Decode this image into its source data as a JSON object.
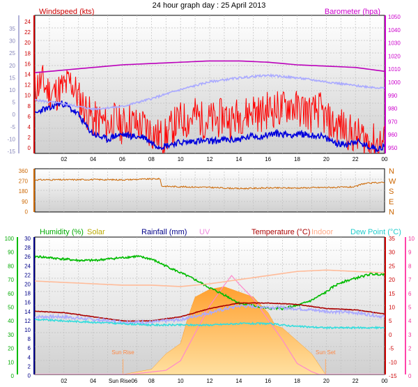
{
  "chart_data": [
    {
      "type": "line",
      "panel": "wind-barometer",
      "title": "24 hour graph day : 25 April 2013",
      "left_axis_title": "Windspeed (kts)",
      "right_axis_title": "Barometer (hpa)",
      "outer_left_ticks": [
        "35",
        "30",
        "25",
        "20",
        "15",
        "10",
        "5",
        "0",
        "-5",
        "-10",
        "-15"
      ],
      "left_ticks": [
        "24",
        "22",
        "20",
        "18",
        "16",
        "14",
        "12",
        "10",
        "8",
        "6",
        "4",
        "2",
        "0"
      ],
      "right_ticks": [
        "1050",
        "1040",
        "1030",
        "1020",
        "1010",
        "1000",
        "990",
        "980",
        "970",
        "960",
        "950"
      ],
      "x_ticks": [
        "02",
        "04",
        "06",
        "08",
        "10",
        "12",
        "14",
        "16",
        "18",
        "20",
        "22",
        "00"
      ],
      "ylim_left": [
        0,
        25
      ],
      "ylim_right": [
        947,
        1053
      ],
      "xlim": [
        0,
        24
      ],
      "series": [
        {
          "name": "Windspeed (kts)",
          "axis": "left",
          "color": "#ff0000",
          "noise": 3.5,
          "seed": 11,
          "x": [
            0,
            0.5,
            1,
            1.5,
            2,
            2.5,
            3,
            3.5,
            4,
            4.5,
            5,
            5.5,
            6,
            6.5,
            7,
            7.5,
            8,
            8.5,
            9,
            9.5,
            10,
            10.5,
            11,
            11.5,
            12,
            12.5,
            13,
            13.5,
            14,
            14.5,
            15,
            15.5,
            16,
            16.5,
            17,
            17.5,
            18,
            18.5,
            19,
            19.5,
            20,
            20.5,
            21,
            21.5,
            22,
            22.5,
            23,
            23.5,
            24
          ],
          "y": [
            12,
            13,
            11,
            11,
            12,
            13,
            10,
            8,
            6,
            6,
            5,
            6,
            5,
            6,
            5,
            5,
            4,
            3,
            3,
            5,
            6,
            6,
            7,
            6,
            6,
            6,
            7,
            6,
            7,
            7,
            8,
            7,
            8,
            8,
            8,
            9,
            8,
            8,
            7,
            8,
            6,
            5,
            5,
            4,
            3,
            3,
            2,
            2,
            2
          ]
        },
        {
          "x": [
            0,
            0.5,
            1,
            1.5,
            2,
            2.5,
            3,
            3.5,
            4,
            4.5,
            5,
            5.5,
            6,
            6.5,
            7,
            7.5,
            8,
            8.5,
            9,
            9.5,
            10,
            10.5,
            11,
            11.5,
            12,
            12.5,
            13,
            13.5,
            14,
            14.5,
            15,
            15.5,
            16,
            16.5,
            17,
            17.5,
            18,
            18.5,
            19,
            19.5,
            20,
            20.5,
            21,
            21.5,
            22,
            22.5,
            23,
            23.5,
            24
          ],
          "axis": "left",
          "color": "#0000dd",
          "noise": 0.6,
          "seed": 23,
          "y": [
            7,
            8,
            8,
            9,
            9,
            8,
            7,
            5,
            3.5,
            3,
            2.5,
            3.2,
            3.4,
            3.2,
            3,
            3,
            2,
            1.3,
            1.4,
            1.8,
            2,
            2,
            2.3,
            2.2,
            2.2,
            2.3,
            2.5,
            2.4,
            2.6,
            2.8,
            3.2,
            3,
            3.4,
            3.6,
            3.5,
            3.4,
            3.4,
            3.5,
            3.2,
            3.3,
            2.6,
            2.1,
            1.6,
            1.8,
            2.3,
            1.6,
            1.2,
            0.9,
            1.2
          ]
        },
        {
          "axis": "right",
          "color": "#bb00bb",
          "noise": 0,
          "seed": 1,
          "x": [
            0,
            2,
            4,
            6,
            8,
            10,
            12,
            14,
            16,
            18,
            20,
            22,
            24
          ],
          "y": [
            1009,
            1011,
            1013,
            1015,
            1016,
            1017,
            1018,
            1018,
            1017,
            1015,
            1014,
            1013,
            1010
          ]
        },
        {
          "axis": "right",
          "color": "#aaaaff",
          "noise": 0.8,
          "seed": 5,
          "x": [
            0,
            2,
            4,
            6,
            8,
            10,
            12,
            14,
            16,
            18,
            20,
            22,
            24
          ],
          "y": [
            988,
            985,
            981,
            983,
            989,
            996,
            1002,
            1005,
            1007,
            1005,
            1002,
            999,
            997
          ]
        }
      ]
    },
    {
      "type": "scatter",
      "panel": "wind-direction",
      "left_ticks": [
        "360",
        "270",
        "180",
        "90",
        "0"
      ],
      "right_ticks": [
        "N",
        "W",
        "S",
        "E",
        "N"
      ],
      "ylim": [
        0,
        360
      ],
      "xlim": [
        0,
        24
      ],
      "series": [
        {
          "axis": "left",
          "color": "#cc6600",
          "noise": 6,
          "seed": 31,
          "x": [
            0,
            2,
            4,
            6,
            8,
            8.6,
            8.7,
            10,
            12,
            14,
            16,
            18,
            20,
            21,
            22,
            22.5,
            23.5,
            24
          ],
          "y": [
            268,
            268,
            270,
            268,
            275,
            276,
            215,
            210,
            205,
            195,
            200,
            200,
            205,
            205,
            210,
            235,
            245,
            245
          ]
        }
      ]
    },
    {
      "type": "area",
      "panel": "humidity-temperature",
      "axis_titles": {
        "humidity": "Humidity (%)",
        "solar": "Solar",
        "rainfall": "Rainfall (mm)",
        "uv": "UV",
        "temperature": "Temperature (°C)",
        "indoor": "Indoor",
        "dew_point": "Dew Point (°C)"
      },
      "humidity_ticks": [
        "100",
        "90",
        "80",
        "70",
        "60",
        "50",
        "40",
        "30",
        "20",
        "10",
        "0"
      ],
      "rain_ticks": [
        "30",
        "28",
        "26",
        "24",
        "22",
        "20",
        "18",
        "16",
        "14",
        "12",
        "10",
        "8",
        "6",
        "4",
        "2",
        "0"
      ],
      "temperature_ticks": [
        "35",
        "30",
        "25",
        "20",
        "15",
        "10",
        "5",
        "0",
        "-5",
        "-10",
        "-15"
      ],
      "uv_ticks": [
        "10",
        "9",
        "8",
        "7",
        "6",
        "5",
        "4",
        "3",
        "2",
        "1",
        "0"
      ],
      "x_ticks": [
        "02",
        "04",
        "06",
        "08",
        "10",
        "12",
        "14",
        "16",
        "18",
        "20",
        "22",
        "00"
      ],
      "sunrise_label": "Sun Rise",
      "sunset_label": "Sun Set",
      "sunrise_axis_label": "Sun Rise06",
      "sunrise_hour": 6.05,
      "sunset_hour": 19.95,
      "ylim_humidity": [
        0,
        100
      ],
      "ylim_temperature": [
        -15,
        35
      ],
      "xlim": [
        0,
        24
      ],
      "solar_area": {
        "color": "#ffb347",
        "x": [
          0,
          6.05,
          8,
          9,
          10,
          10.5,
          11,
          12,
          13,
          14,
          15,
          16,
          16.5,
          17,
          18,
          19,
          19.95,
          24
        ],
        "y": [
          0,
          0,
          2,
          8,
          12,
          22,
          30,
          33,
          34,
          32,
          30,
          24,
          19,
          18,
          13,
          8,
          0,
          0
        ]
      },
      "uv_curve": {
        "color": "#ff88cc",
        "x": [
          0,
          6.5,
          9,
          10,
          11,
          12,
          13,
          13.5,
          14,
          15,
          16,
          17,
          18,
          19,
          19.5,
          24
        ],
        "y": [
          0,
          0,
          0.3,
          1,
          3,
          5,
          6.5,
          7.2,
          6.6,
          5.5,
          4,
          2.5,
          0.8,
          0.2,
          0,
          0
        ]
      },
      "series": [
        {
          "name": "Humidity (%)",
          "axis": "humidity",
          "color": "#00bb00",
          "noise": 0.8,
          "seed": 41,
          "x": [
            0,
            1,
            2,
            3,
            4,
            5,
            6,
            7,
            8,
            9,
            10,
            11,
            12,
            13,
            14,
            15,
            16,
            17,
            18,
            19,
            20,
            20.5,
            21,
            22,
            23,
            24
          ],
          "y": [
            86,
            85,
            84,
            83,
            83,
            84,
            85,
            86,
            84,
            79,
            74,
            69,
            63,
            58,
            52,
            50,
            48,
            48,
            50,
            54,
            60,
            64,
            67,
            70,
            73,
            73
          ]
        },
        {
          "axis": "temperature",
          "color": "#ffbb99",
          "noise": 0,
          "seed": 2,
          "x": [
            0,
            2,
            4,
            6,
            8,
            10,
            12,
            14,
            16,
            18,
            20,
            22,
            24
          ],
          "y": [
            19,
            18.5,
            18,
            17.5,
            17.5,
            17,
            18,
            19.5,
            21,
            22.5,
            23,
            22.5,
            22
          ]
        },
        {
          "name": "Temperature (°C)",
          "axis": "temperature",
          "color": "#aa0000",
          "noise": 0.1,
          "seed": 3,
          "x": [
            0,
            2,
            4,
            6,
            8,
            10,
            12,
            14,
            16,
            18,
            20,
            22,
            24
          ],
          "y": [
            8,
            7.5,
            6,
            4.5,
            4.5,
            6,
            9,
            11,
            11,
            10.5,
            9,
            8.5,
            7
          ]
        },
        {
          "axis": "temperature",
          "color": "#aaaaff",
          "noise": 0.6,
          "seed": 7,
          "x": [
            0,
            2,
            4,
            6,
            8,
            10,
            12,
            14,
            16,
            18,
            20,
            22,
            24
          ],
          "y": [
            6,
            6,
            5,
            4,
            4,
            5,
            7.5,
            10,
            9.5,
            9,
            8,
            7.5,
            6
          ]
        },
        {
          "name": "Dew Point (°C)",
          "axis": "temperature",
          "color": "#33dddd",
          "noise": 0.3,
          "seed": 9,
          "x": [
            0,
            2,
            4,
            6,
            8,
            10,
            12,
            14,
            16,
            18,
            20,
            22,
            24
          ],
          "y": [
            5,
            4.5,
            4,
            3.5,
            3,
            3,
            3,
            3.5,
            3.5,
            2.5,
            2,
            2,
            2
          ]
        }
      ]
    }
  ]
}
